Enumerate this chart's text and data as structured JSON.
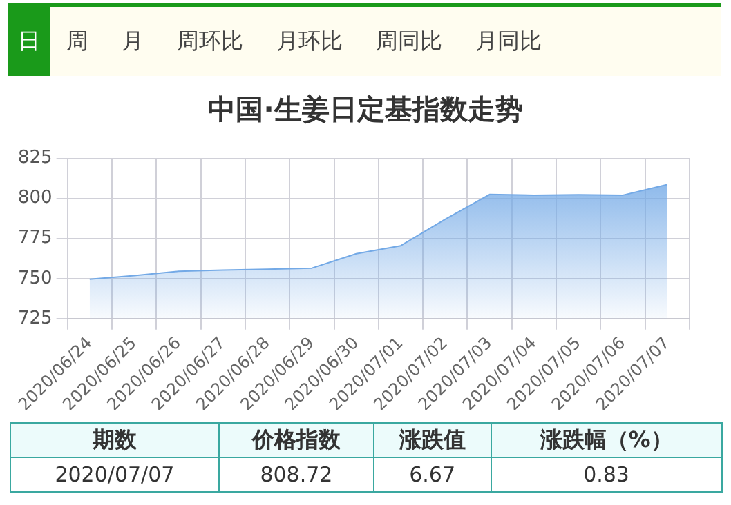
{
  "chart_data": {
    "type": "area",
    "title": "中国·生姜日定基指数走势",
    "categories": [
      "2020/06/24",
      "2020/06/25",
      "2020/06/26",
      "2020/06/27",
      "2020/06/28",
      "2020/06/29",
      "2020/06/30",
      "2020/07/01",
      "2020/07/02",
      "2020/07/03",
      "2020/07/04",
      "2020/07/05",
      "2020/07/06",
      "2020/07/07"
    ],
    "series": [
      {
        "color": "#73a9e6",
        "values": [
          749.6,
          751.8,
          754.5,
          755.3,
          755.8,
          756.5,
          765.5,
          770.5,
          787,
          802.5,
          802,
          802.3,
          802.05,
          808.72
        ]
      }
    ],
    "ylim": [
      725,
      825
    ],
    "yticks": [
      725,
      750,
      775,
      800,
      825
    ],
    "grid": true,
    "legend": false,
    "marker": "none",
    "annotations": [
      "日",
      "周",
      "月",
      "周环比",
      "月环比",
      "周同比",
      "月同比",
      "期数",
      "价格指数",
      "涨跌值",
      "涨跌幅（%）",
      "2020/07/07",
      "808.72",
      "6.67",
      "0.83"
    ]
  }
}
